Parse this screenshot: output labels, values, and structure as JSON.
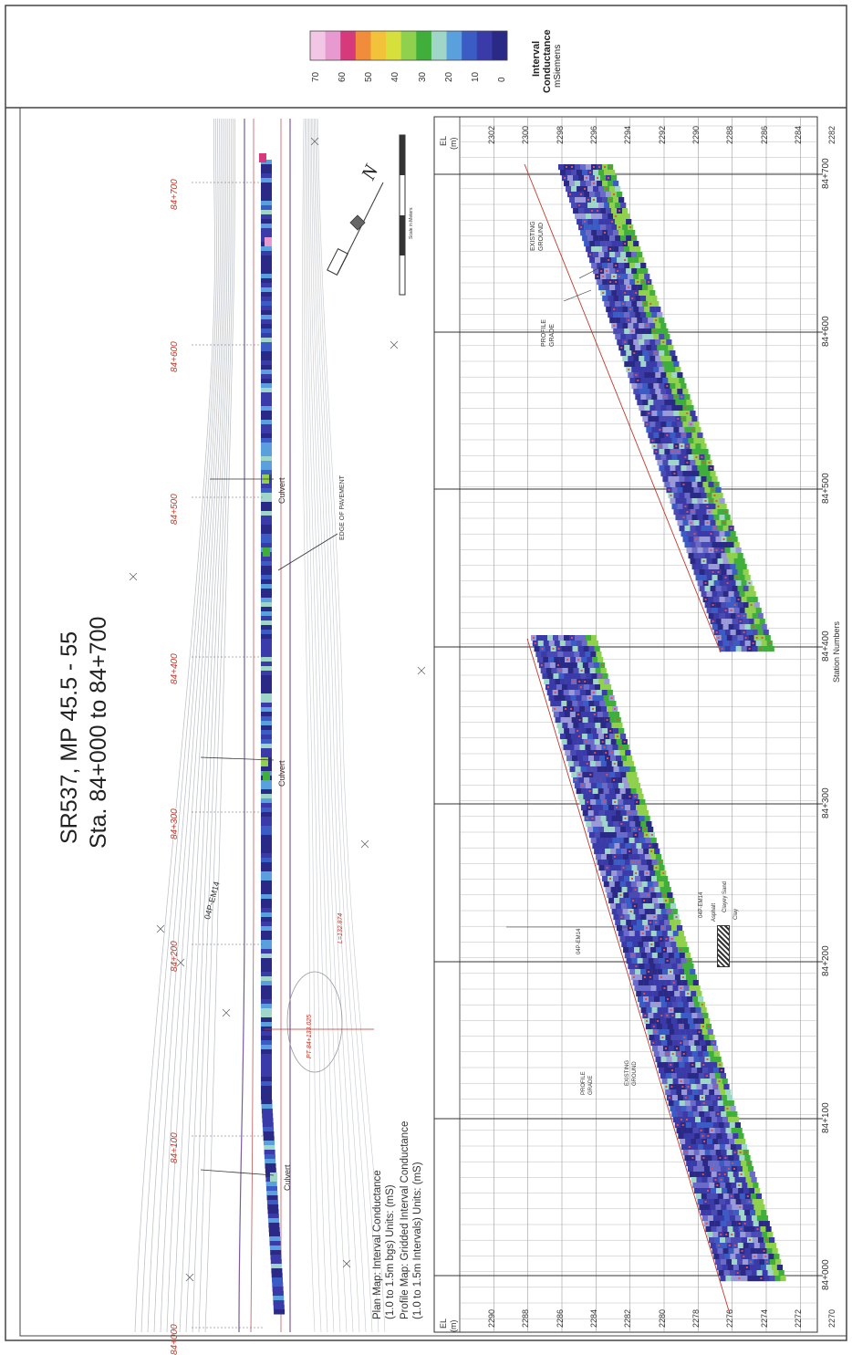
{
  "title": {
    "line1": "SR537, MP 45.5 - 55",
    "line2": "Sta. 84+000 to 84+700"
  },
  "legend": {
    "title": "Interval",
    "title2": "Conductance",
    "units": "mSiemens",
    "ticks": [
      "70",
      "60",
      "50",
      "40",
      "30",
      "20",
      "10",
      "0"
    ],
    "colors": [
      "#f2c6e4",
      "#e89ad0",
      "#d63a7a",
      "#f08c3a",
      "#f2c23a",
      "#d6df3c",
      "#8fd14c",
      "#3fae3a",
      "#9fd6c8",
      "#5aa0dc",
      "#3a5cc4",
      "#3a3aa8",
      "#2a2a86"
    ]
  },
  "notes": {
    "plan_map_1": "Plan Map: Interval Conductance",
    "plan_map_2": "(1.0 to 1.5m bgs) Units: (mS)",
    "profile_map_1": "Profile Map: Gridded Interval Conductance",
    "profile_map_2": "(1.0 to 1.5m Intervals) Units: (mS)"
  },
  "plan": {
    "stations": [
      "84+000",
      "84+100",
      "84+200",
      "84+300",
      "84+400",
      "84+500",
      "84+600",
      "84+700"
    ],
    "culvert_label": "Culvert",
    "culvert_label_2": "Culvert",
    "culvert_label_3": "Culvert",
    "boring_label": "04P-EM14",
    "pavement_label": "EDGE OF PAVEMENT",
    "curve_label_1": "PT 84+133.025",
    "curve_label_2": "L=132.874"
  },
  "north_arrow": {
    "letter": "N",
    "scale_caption": "Scale in Meters"
  },
  "profile": {
    "x_title": "Station Numbers",
    "stations": [
      "84+000",
      "84+100",
      "84+200",
      "84+300",
      "84+400",
      "84+500",
      "84+600",
      "84+700"
    ],
    "el_left_header": "EL",
    "el_left_units": "(m)",
    "el_left": [
      "2290",
      "2288",
      "2286",
      "2284",
      "2282",
      "2280",
      "2278",
      "2276",
      "2274",
      "2272",
      "2270"
    ],
    "el_right_header": "EL",
    "el_right_units": "(m)",
    "el_right": [
      "2302",
      "2300",
      "2298",
      "2296",
      "2294",
      "2292",
      "2290",
      "2288",
      "2286",
      "2284",
      "2282"
    ],
    "labels": {
      "profile_grade_a": "PROFILE\nGRADE",
      "existing_ground_a": "EXISTING\nGROUND",
      "profile_grade_b": "PROFILE\nGRADE",
      "existing_ground_b": "EXISTING\nGROUND",
      "boring": "04P-EM14",
      "boring_key_title": "04P-EM14",
      "boring_key_1": "Asphalt",
      "boring_key_2": "Clayey Sand",
      "boring_key_3": "Clay"
    }
  }
}
